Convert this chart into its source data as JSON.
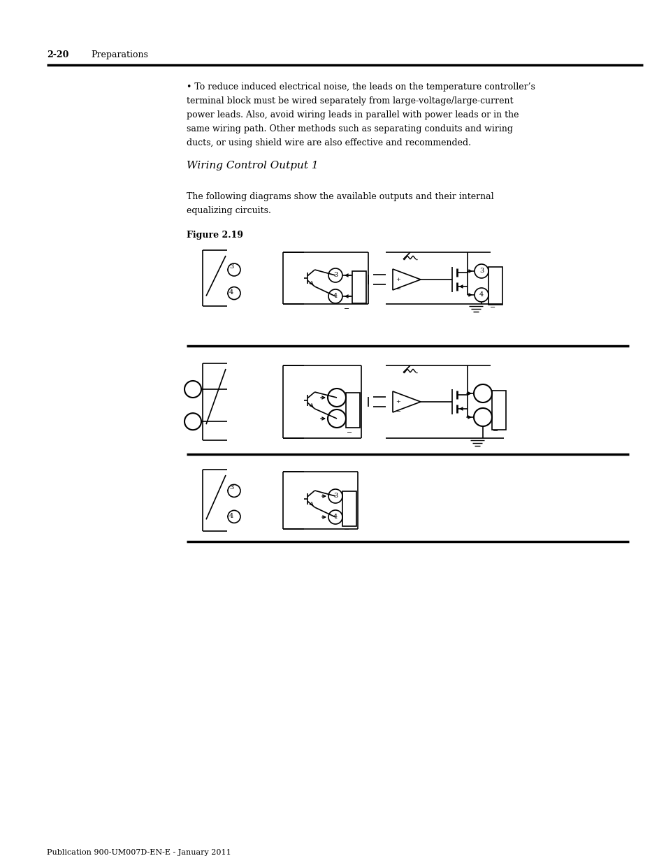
{
  "page_header_number": "2-20",
  "page_header_text": "Preparations",
  "footer_text": "Publication 900-UM007D-EN-E - January 2011",
  "section_title": "Wiring Control Output 1",
  "figure_label": "Figure 2.19",
  "bg_color": "#ffffff",
  "text_color": "#000000",
  "line_color": "#000000"
}
